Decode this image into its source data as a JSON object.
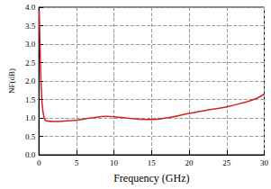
{
  "chart_data": {
    "type": "line",
    "x_label": "Frequency (GHz)",
    "y_label": "NF(dB)",
    "x": [
      0.05,
      0.2,
      0.4,
      0.7,
      1,
      2,
      3,
      5,
      7,
      9,
      10,
      12,
      14,
      15,
      17,
      19,
      21,
      23,
      25,
      27,
      29,
      30
    ],
    "values": [
      3.9,
      2.6,
      1.5,
      1.0,
      0.92,
      0.9,
      0.91,
      0.94,
      1.0,
      1.04,
      1.03,
      0.99,
      0.96,
      0.96,
      1.0,
      1.08,
      1.16,
      1.23,
      1.3,
      1.4,
      1.53,
      1.65
    ],
    "color": "#d62020",
    "line_style": "solid",
    "xlim": [
      0,
      30
    ],
    "xticks": [
      0,
      5,
      10,
      15,
      20,
      25,
      30
    ],
    "ylim": [
      0,
      4
    ],
    "yticks": [
      {
        "value": 0,
        "label": "0.0"
      },
      {
        "value": 0.5,
        "label": "0.5"
      },
      {
        "value": 1,
        "label": "1.0"
      },
      {
        "value": 1.5,
        "label": "1.5"
      },
      {
        "value": 2,
        "label": "2.0"
      },
      {
        "value": 2.5,
        "label": "2.5"
      },
      {
        "value": 3,
        "label": "3.0"
      },
      {
        "value": 3.5,
        "label": "3.5"
      },
      {
        "value": 4,
        "label": "4.0"
      }
    ],
    "grid": true
  }
}
